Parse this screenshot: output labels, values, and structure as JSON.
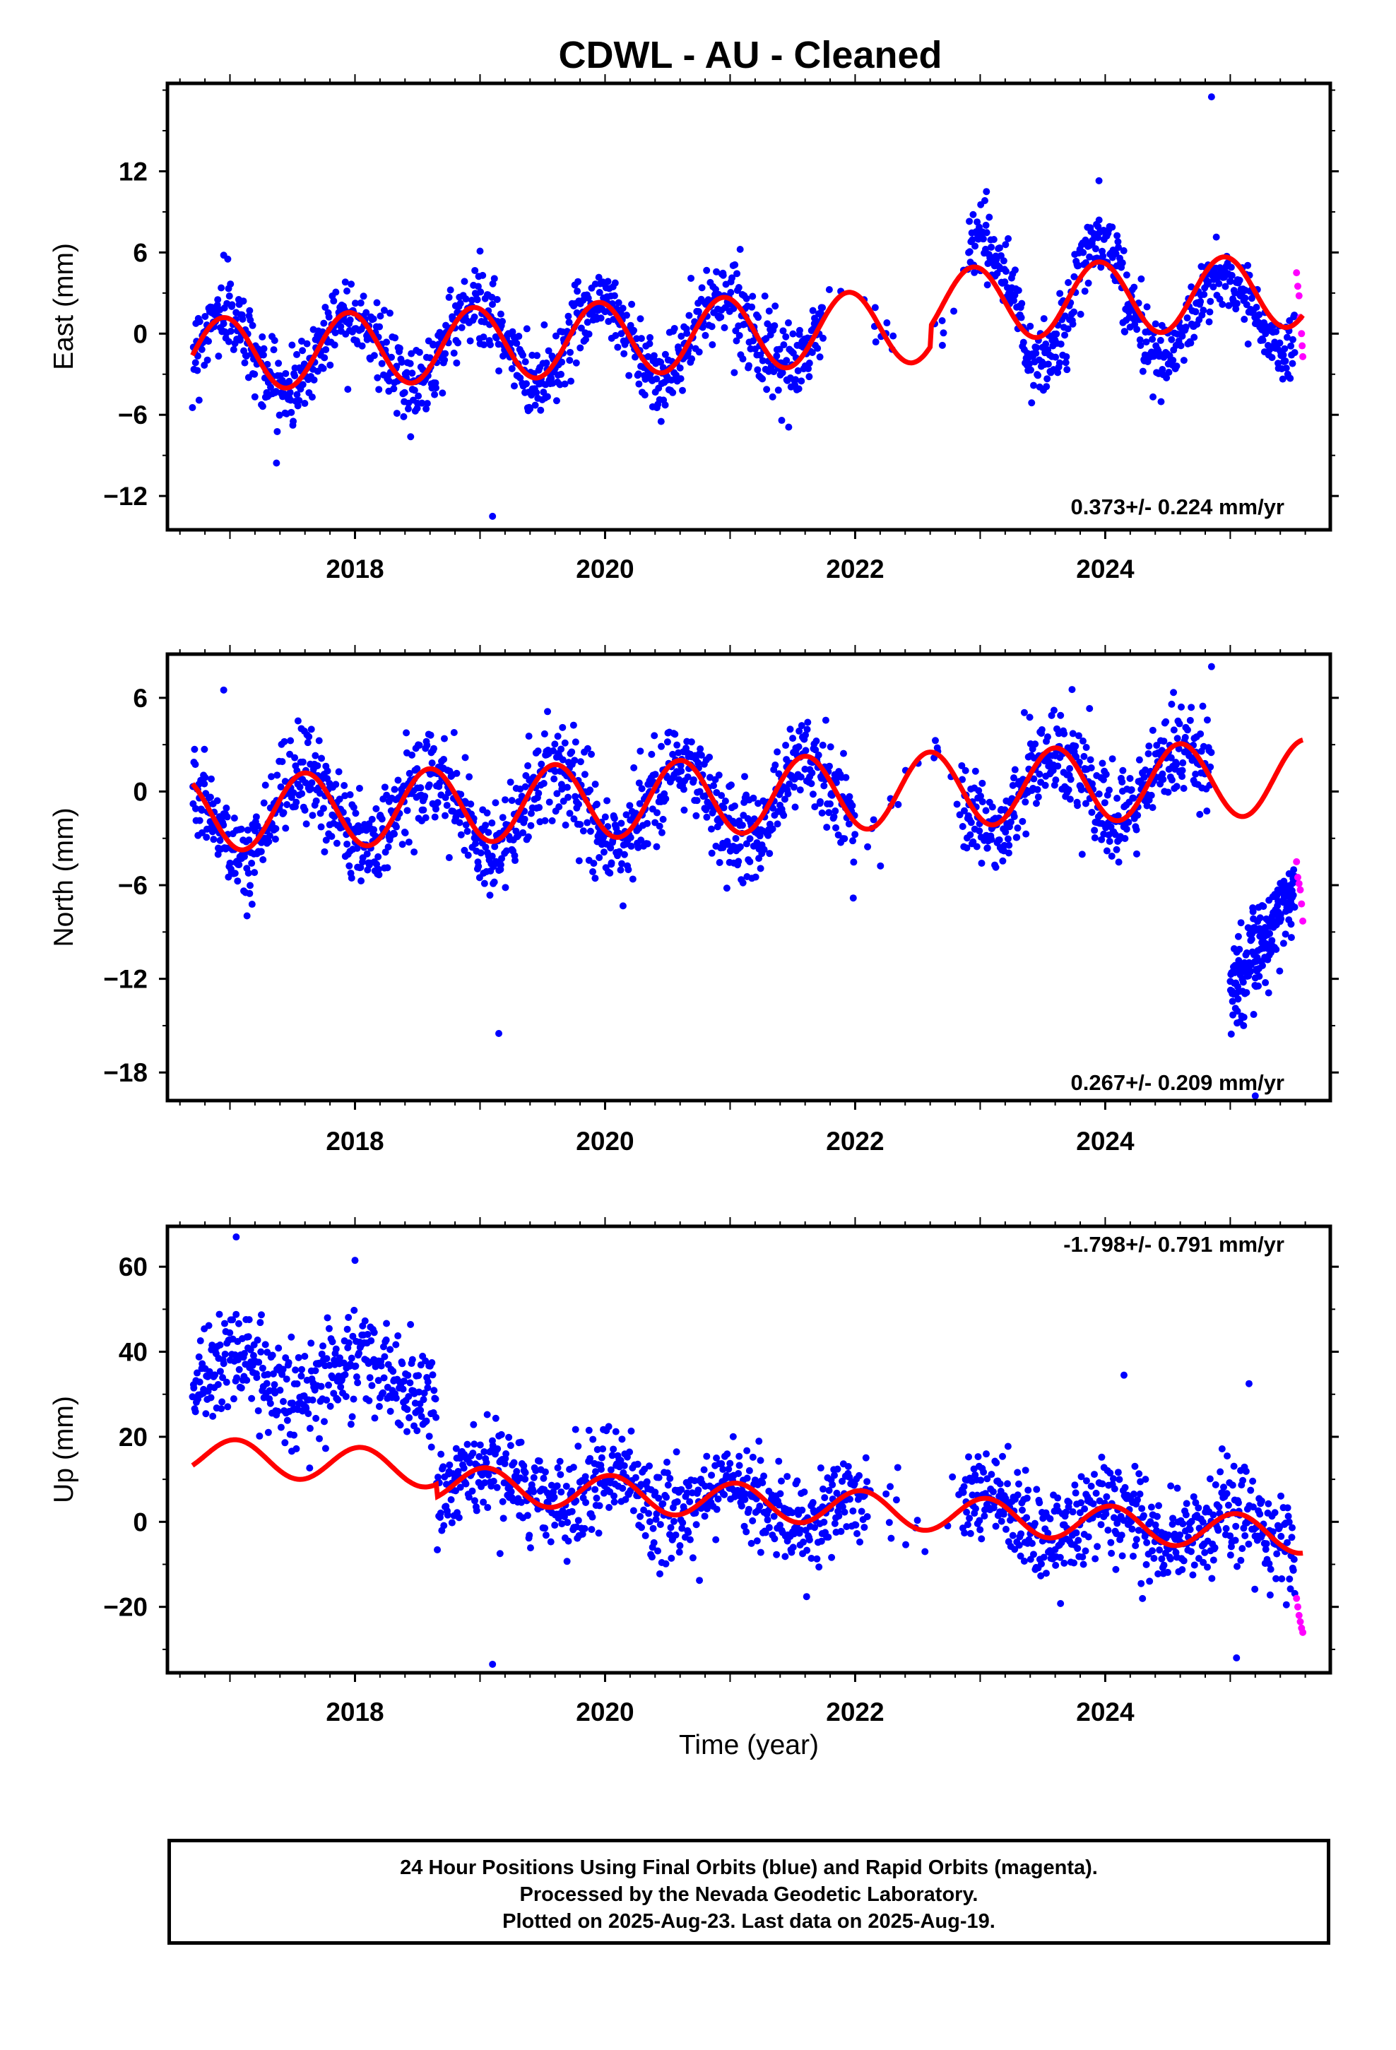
{
  "chart_data": {
    "type": "scatter",
    "title": "CDWL  - AU - Cleaned",
    "x_tick_labels": [
      "2018",
      "2020",
      "2022",
      "2024"
    ],
    "xlim": [
      2016.5,
      2025.8
    ],
    "xlabel": "Time (year)",
    "marker_colors": {
      "final_orbits": "#0000ff",
      "rapid_orbits": "#ff00ff",
      "model": "#ff0000"
    },
    "panels": [
      {
        "name": "east",
        "ylabel": "East (mm)",
        "ylim": [
          -14.5,
          18.5
        ],
        "yticks": [
          -12,
          -6,
          0,
          6,
          12
        ],
        "rate_text": "0.373+/- 0.224 mm/yr",
        "model_fit": {
          "offset": 0.0,
          "trend_mm_per_yr": 0.373,
          "annual_amplitude": 2.7,
          "annual_peak_decimal_year": 0.95,
          "steps": [
            {
              "year": 2022.6,
              "delta": 1.5
            }
          ]
        },
        "final_orbits": {
          "start": 2016.7,
          "end": 2025.52,
          "mean": 0.0,
          "trend_mm_per_yr": 0.373,
          "annual_amplitude": 2.9,
          "annual_peak_decimal_year": 0.95,
          "scatter_sd": 1.4,
          "gaps": [
            [
              2021.75,
              2022.9
            ]
          ],
          "outliers": [
            [
              2019.1,
              -13.5
            ],
            [
              2024.85,
              17.5
            ],
            [
              2023.05,
              10.5
            ],
            [
              2023.95,
              11.3
            ],
            [
              2016.95,
              5.8
            ],
            [
              2019.0,
              6.1
            ]
          ],
          "offsets": [
            {
              "start": 2022.9,
              "end": 2023.35,
              "delta": 3.5
            },
            {
              "start": 2023.75,
              "end": 2024.15,
              "delta": 2.5
            }
          ]
        },
        "rapid_orbits": {
          "x": [
            2025.53,
            2025.54,
            2025.55,
            2025.56,
            2025.57,
            2025.575,
            2025.58
          ],
          "y": [
            4.5,
            3.5,
            2.8,
            1.2,
            0.0,
            -0.9,
            -1.7
          ]
        }
      },
      {
        "name": "north",
        "ylabel": "North (mm)",
        "ylim": [
          -19.8,
          8.8
        ],
        "yticks": [
          -18,
          -12,
          -6,
          0,
          6
        ],
        "rate_text": "0.267+/- 0.209 mm/yr",
        "model_fit": {
          "offset": -0.3,
          "trend_mm_per_yr": 0.267,
          "annual_amplitude": 2.4,
          "annual_peak_decimal_year": 0.6,
          "steps": []
        },
        "final_orbits": {
          "start": 2016.7,
          "end": 2024.85,
          "mean": -0.5,
          "trend_mm_per_yr": 0.267,
          "annual_amplitude": 2.5,
          "annual_peak_decimal_year": 0.6,
          "scatter_sd": 1.5,
          "gaps": [
            [
              2022.0,
              2022.85
            ]
          ],
          "outliers": [
            [
              2019.15,
              -15.5
            ],
            [
              2016.95,
              6.5
            ],
            [
              2024.85,
              8.0
            ],
            [
              2025.2,
              -19.5
            ]
          ],
          "offsets": []
        },
        "post_step_segment": {
          "start": 2025.0,
          "end": 2025.52,
          "y_start": -13.0,
          "y_end": -6.0,
          "scatter_sd": 1.5
        },
        "rapid_orbits": {
          "x": [
            2025.53,
            2025.54,
            2025.55,
            2025.56,
            2025.57,
            2025.58
          ],
          "y": [
            -4.5,
            -5.5,
            -5.9,
            -6.3,
            -7.2,
            -8.3
          ]
        }
      },
      {
        "name": "up",
        "ylabel": "Up (mm)",
        "ylim": [
          -35.5,
          69.5
        ],
        "yticks": [
          -20,
          0,
          20,
          40,
          60
        ],
        "rate_text": "-1.798+/- 0.791 mm/yr",
        "model_fit": {
          "offset": 8.0,
          "trend_mm_per_yr": -1.798,
          "annual_amplitude": 4.2,
          "annual_peak_decimal_year": 0.05,
          "steps": [
            {
              "year": 2018.65,
              "delta": -3.0
            }
          ]
        },
        "final_orbits": {
          "start": 2016.7,
          "end": 2025.52,
          "mean": 5.0,
          "trend_mm_per_yr": -1.798,
          "annual_amplitude": 4.0,
          "annual_peak_decimal_year": 0.05,
          "scatter_sd": 5.5,
          "gaps": [
            [
              2022.1,
              2022.85
            ]
          ],
          "outliers": [
            [
              2019.1,
              -33.5
            ],
            [
              2017.05,
              67.0
            ],
            [
              2025.05,
              -32.0
            ],
            [
              2025.15,
              32.5
            ],
            [
              2024.15,
              34.5
            ],
            [
              2018.0,
              61.5
            ]
          ],
          "offsets": [
            {
              "start": 2016.7,
              "end": 2018.65,
              "delta": 32.0,
              "level": 34.0
            }
          ]
        },
        "rapid_orbits": {
          "x": [
            2025.53,
            2025.54,
            2025.55,
            2025.56,
            2025.57,
            2025.58
          ],
          "y": [
            -18.0,
            -20.0,
            -22.0,
            -23.5,
            -25.0,
            -26.0
          ]
        }
      }
    ]
  },
  "footer": {
    "line1": "24 Hour Positions Using Final Orbits (blue) and Rapid Orbits (magenta).",
    "line2": "Processed by the Nevada Geodetic Laboratory.",
    "line3": "Plotted on 2025-Aug-23. Last data on 2025-Aug-19."
  }
}
